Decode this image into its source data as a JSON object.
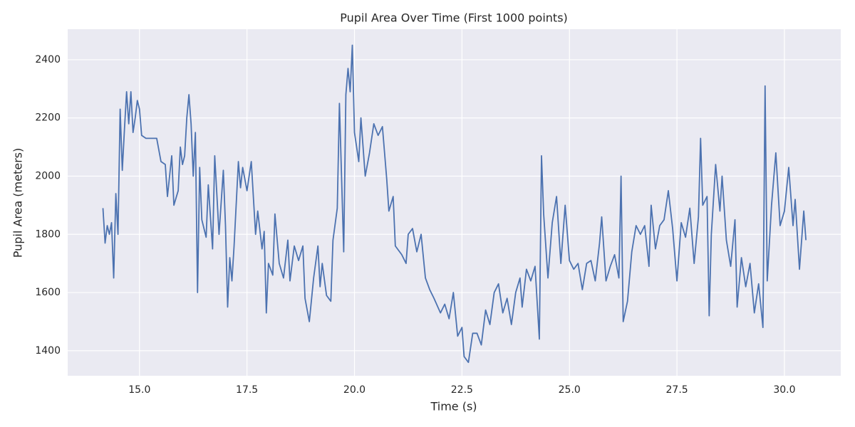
{
  "chart_data": {
    "type": "line",
    "title": "Pupil Area Over Time (First 1000 points)",
    "x_label": "Time (s)",
    "y_label": "Pupil Area (meters)",
    "color": "#4c72b0",
    "grid": true,
    "xlim": [
      13.33,
      31.31
    ],
    "ylim": [
      1314,
      2505
    ],
    "xticks": [
      {
        "value": 15,
        "label": "15.0"
      },
      {
        "value": 17.5,
        "label": "17.5"
      },
      {
        "value": 20,
        "label": "20.0"
      },
      {
        "value": 22.5,
        "label": "22.5"
      },
      {
        "value": 25,
        "label": "25.0"
      },
      {
        "value": 27.5,
        "label": "27.5"
      },
      {
        "value": 30,
        "label": "30.0"
      }
    ],
    "yticks": [
      1400,
      1600,
      1800,
      2000,
      2200,
      2400
    ],
    "x": [
      14.15,
      14.2,
      14.25,
      14.3,
      14.35,
      14.4,
      14.45,
      14.5,
      14.55,
      14.6,
      14.65,
      14.7,
      14.75,
      14.8,
      14.85,
      14.9,
      14.95,
      15.0,
      15.05,
      15.15,
      15.3,
      15.4,
      15.5,
      15.6,
      15.65,
      15.75,
      15.8,
      15.9,
      15.95,
      16.0,
      16.05,
      16.1,
      16.15,
      16.2,
      16.25,
      16.3,
      16.35,
      16.4,
      16.45,
      16.55,
      16.6,
      16.7,
      16.75,
      16.85,
      16.95,
      17.0,
      17.05,
      17.1,
      17.15,
      17.2,
      17.3,
      17.35,
      17.4,
      17.5,
      17.6,
      17.7,
      17.75,
      17.85,
      17.9,
      17.95,
      18.0,
      18.1,
      18.15,
      18.25,
      18.35,
      18.45,
      18.5,
      18.6,
      18.7,
      18.8,
      18.85,
      18.95,
      19.05,
      19.15,
      19.2,
      19.25,
      19.35,
      19.45,
      19.5,
      19.6,
      19.65,
      19.75,
      19.8,
      19.85,
      19.9,
      19.95,
      20.0,
      20.1,
      20.15,
      20.25,
      20.35,
      20.45,
      20.55,
      20.65,
      20.75,
      20.8,
      20.9,
      20.95,
      21.1,
      21.2,
      21.25,
      21.35,
      21.45,
      21.55,
      21.65,
      21.75,
      21.85,
      22.0,
      22.1,
      22.2,
      22.3,
      22.4,
      22.5,
      22.55,
      22.65,
      22.75,
      22.85,
      22.95,
      23.05,
      23.15,
      23.25,
      23.35,
      23.45,
      23.55,
      23.65,
      23.75,
      23.85,
      23.9,
      24.0,
      24.1,
      24.2,
      24.3,
      24.35,
      24.4,
      24.5,
      24.6,
      24.7,
      24.8,
      24.9,
      25.0,
      25.1,
      25.2,
      25.3,
      25.4,
      25.5,
      25.6,
      25.7,
      25.75,
      25.85,
      25.95,
      26.05,
      26.15,
      26.2,
      26.25,
      26.35,
      26.45,
      26.55,
      26.65,
      26.75,
      26.85,
      26.9,
      27.0,
      27.1,
      27.2,
      27.3,
      27.4,
      27.5,
      27.6,
      27.7,
      27.8,
      27.9,
      28.0,
      28.05,
      28.1,
      28.2,
      28.25,
      28.3,
      28.4,
      28.5,
      28.55,
      28.65,
      28.75,
      28.85,
      28.9,
      29.0,
      29.1,
      29.2,
      29.3,
      29.4,
      29.5,
      29.55,
      29.6,
      29.7,
      29.8,
      29.9,
      30.0,
      30.1,
      30.2,
      30.25,
      30.35,
      30.45,
      30.5
    ],
    "values": [
      1890,
      1770,
      1830,
      1800,
      1840,
      1650,
      1940,
      1800,
      2230,
      2020,
      2160,
      2290,
      2180,
      2290,
      2150,
      2200,
      2260,
      2230,
      2140,
      2130,
      2130,
      2130,
      2050,
      2040,
      1930,
      2070,
      1900,
      1950,
      2100,
      2040,
      2070,
      2200,
      2280,
      2180,
      2000,
      2150,
      1600,
      2030,
      1850,
      1790,
      1970,
      1750,
      2070,
      1800,
      2020,
      1830,
      1550,
      1720,
      1640,
      1760,
      2050,
      1960,
      2030,
      1950,
      2050,
      1800,
      1880,
      1750,
      1810,
      1530,
      1700,
      1660,
      1870,
      1700,
      1650,
      1780,
      1640,
      1760,
      1710,
      1760,
      1580,
      1500,
      1650,
      1760,
      1620,
      1700,
      1590,
      1570,
      1780,
      1890,
      2250,
      1740,
      2280,
      2370,
      2290,
      2450,
      2150,
      2050,
      2200,
      2000,
      2080,
      2180,
      2140,
      2170,
      1990,
      1880,
      1930,
      1760,
      1730,
      1700,
      1800,
      1820,
      1740,
      1800,
      1650,
      1610,
      1580,
      1530,
      1560,
      1510,
      1600,
      1450,
      1480,
      1380,
      1360,
      1460,
      1460,
      1420,
      1540,
      1490,
      1600,
      1630,
      1530,
      1580,
      1490,
      1600,
      1650,
      1550,
      1680,
      1640,
      1690,
      1440,
      2070,
      1870,
      1650,
      1840,
      1930,
      1700,
      1900,
      1710,
      1680,
      1700,
      1610,
      1700,
      1710,
      1640,
      1770,
      1860,
      1640,
      1690,
      1730,
      1650,
      2000,
      1500,
      1570,
      1740,
      1830,
      1800,
      1830,
      1690,
      1900,
      1750,
      1830,
      1850,
      1950,
      1820,
      1640,
      1840,
      1790,
      1890,
      1700,
      1860,
      2130,
      1900,
      1930,
      1520,
      1800,
      2040,
      1880,
      2000,
      1780,
      1690,
      1850,
      1550,
      1720,
      1620,
      1700,
      1530,
      1630,
      1480,
      2310,
      1640,
      1900,
      2080,
      1830,
      1880,
      2030,
      1830,
      1920,
      1680,
      1880,
      1780
    ]
  }
}
